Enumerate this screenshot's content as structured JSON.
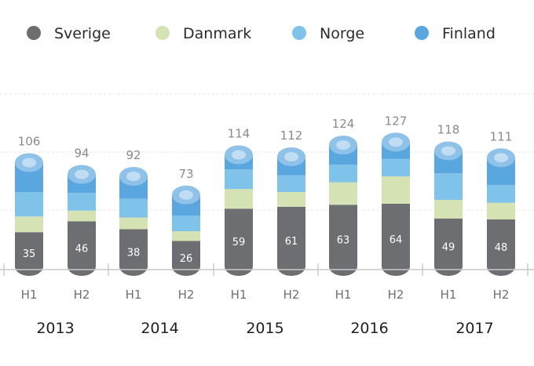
{
  "chart_data": {
    "type": "bar",
    "stacked": true,
    "legend_position": "top",
    "grid": true,
    "ylim": [
      0,
      180
    ],
    "categories": [
      "H1",
      "H2",
      "H1",
      "H2",
      "H1",
      "H2",
      "H1",
      "H2",
      "H1",
      "H2"
    ],
    "year_groups": [
      {
        "label": "2013",
        "start": 0,
        "end": 1
      },
      {
        "label": "2014",
        "start": 2,
        "end": 3
      },
      {
        "label": "2015",
        "start": 4,
        "end": 5
      },
      {
        "label": "2016",
        "start": 6,
        "end": 7
      },
      {
        "label": "2017",
        "start": 8,
        "end": 9
      }
    ],
    "series": [
      {
        "name": "Sverige",
        "color": "#6d6e71",
        "values": [
          35,
          46,
          38,
          26,
          59,
          61,
          63,
          64,
          49,
          48
        ]
      },
      {
        "name": "Danmark",
        "color": "#d4e2b4",
        "values": [
          16,
          11,
          12,
          10,
          20,
          15,
          23,
          28,
          19,
          17
        ]
      },
      {
        "name": "Norge",
        "color": "#7fc3eb",
        "values": [
          25,
          18,
          19,
          16,
          20,
          17,
          18,
          18,
          27,
          18
        ]
      },
      {
        "name": "Finland",
        "color": "#5aa6df",
        "values": [
          30,
          19,
          23,
          21,
          15,
          19,
          20,
          17,
          23,
          28
        ]
      }
    ],
    "totals": [
      106,
      94,
      92,
      73,
      114,
      112,
      124,
      127,
      118,
      111
    ],
    "data_labels_series": "Sverige"
  }
}
